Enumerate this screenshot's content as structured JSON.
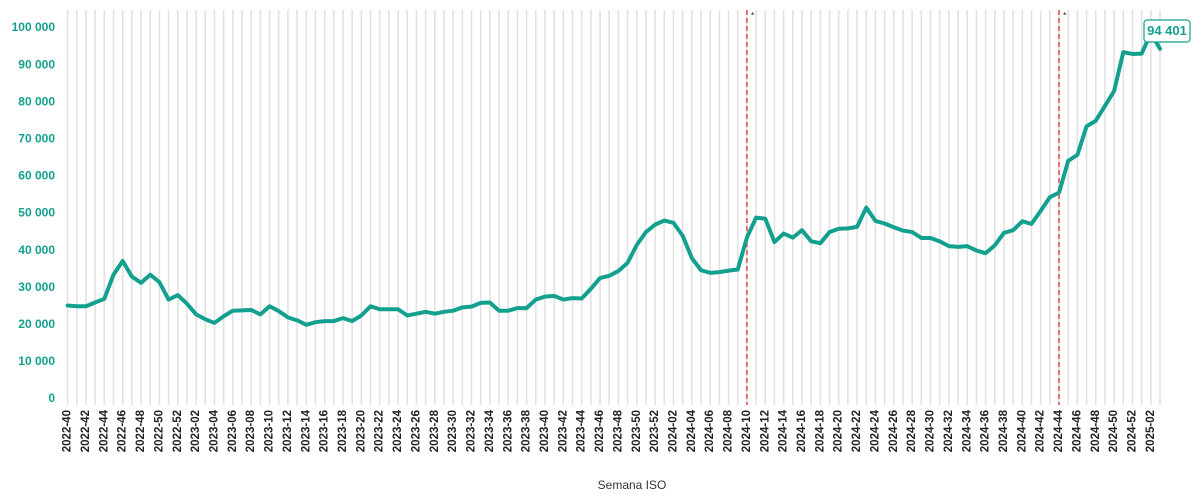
{
  "chart_data": {
    "type": "line",
    "x_label": "Semana ISO",
    "categories": [
      "2022-40",
      null,
      "2022-42",
      null,
      "2022-44",
      null,
      "2022-46",
      null,
      "2022-48",
      null,
      "2022-50",
      null,
      "2022-52",
      null,
      "2023-02",
      null,
      "2023-04",
      null,
      "2023-06",
      null,
      "2023-08",
      null,
      "2023-10",
      null,
      "2023-12",
      null,
      "2023-14",
      null,
      "2023-16",
      null,
      "2023-18",
      null,
      "2023-20",
      null,
      "2023-22",
      null,
      "2023-24",
      null,
      "2023-26",
      null,
      "2023-28",
      null,
      "2023-30",
      null,
      "2023-32",
      null,
      "2023-34",
      null,
      "2023-36",
      null,
      "2023-38",
      null,
      "2023-40",
      null,
      "2023-42",
      null,
      "2023-44",
      null,
      "2023-46",
      null,
      "2023-48",
      null,
      "2023-50",
      null,
      "2023-52",
      null,
      "2024-02",
      null,
      "2024-04",
      null,
      "2024-06",
      null,
      "2024-08",
      null,
      "2024-10",
      null,
      "2024-12",
      null,
      "2024-14",
      null,
      "2024-16",
      null,
      "2024-18",
      null,
      "2024-20",
      null,
      "2024-22",
      null,
      "2024-24",
      null,
      "2024-26",
      null,
      "2024-28",
      null,
      "2024-30",
      null,
      "2024-32",
      null,
      "2024-34",
      null,
      "2024-36",
      null,
      "2024-38",
      null,
      "2024-40",
      null,
      "2024-42",
      null,
      "2024-44",
      null,
      "2024-46",
      null,
      "2024-48",
      null,
      "2024-50",
      null,
      "2024-52",
      null,
      "2025-02",
      null
    ],
    "series": [
      {
        "color": "#13a08e",
        "values": [
          25200,
          25000,
          25000,
          26000,
          27000,
          33500,
          37200,
          33000,
          31300,
          33500,
          31500,
          26800,
          28000,
          25700,
          22800,
          21500,
          20500,
          22300,
          23800,
          23900,
          24000,
          22800,
          25000,
          23700,
          22000,
          21200,
          20000,
          20700,
          21000,
          21000,
          21800,
          21000,
          22500,
          25000,
          24200,
          24200,
          24200,
          22500,
          23000,
          23500,
          23000,
          23500,
          23800,
          24700,
          24900,
          25900,
          26000,
          23800,
          23800,
          24500,
          24500,
          26800,
          27600,
          27800,
          26800,
          27200,
          27100,
          29700,
          32600,
          33200,
          34500,
          36700,
          41500,
          45000,
          47000,
          48100,
          47500,
          44000,
          38000,
          34700,
          34000,
          34200,
          34600,
          34900,
          43500,
          48900,
          48600,
          42300,
          44600,
          43500,
          45500,
          42500,
          42000,
          45000,
          45900,
          46000,
          46400,
          51600,
          48000,
          47300,
          46300,
          45400,
          45000,
          43400,
          43400,
          42500,
          41200,
          41000,
          41200,
          40000,
          39300,
          41400,
          44800,
          45500,
          47900,
          47200,
          50700,
          54400,
          55600,
          64200,
          65800,
          73500,
          75000,
          79000,
          83000,
          93500,
          93000,
          93100,
          98600,
          94401
        ],
        "value_labels": [
          null,
          null,
          null,
          null,
          null,
          null,
          null,
          null,
          null,
          null,
          null,
          null,
          null,
          null,
          null,
          null,
          null,
          null,
          null,
          null,
          null,
          null,
          null,
          null,
          null,
          null,
          null,
          null,
          null,
          null,
          null,
          null,
          null,
          null,
          null,
          null,
          null,
          null,
          null,
          null,
          null,
          null,
          null,
          null,
          null,
          null,
          null,
          null,
          null,
          null,
          null,
          null,
          null,
          null,
          null,
          null,
          null,
          null,
          null,
          null,
          null,
          null,
          null,
          null,
          null,
          null,
          null,
          null,
          null,
          null,
          null,
          null,
          null,
          null,
          null,
          null,
          null,
          null,
          null,
          null,
          null,
          null,
          null,
          null,
          null,
          null,
          null,
          null,
          null,
          null,
          null,
          null,
          null,
          null,
          null,
          null,
          null,
          null,
          null,
          null,
          null,
          null,
          null,
          null,
          null,
          null,
          null,
          null,
          null,
          null,
          null,
          null,
          null,
          null,
          null,
          null,
          null,
          null,
          null,
          "94 401"
        ]
      }
    ],
    "ylim": [
      0,
      100000
    ],
    "yticks": [
      0,
      {
        "value": 10000,
        "label": "10 000"
      },
      {
        "value": 20000,
        "label": "20 000"
      },
      {
        "value": 30000,
        "label": "30 000"
      },
      {
        "value": 40000,
        "label": "40 000"
      },
      {
        "value": 50000,
        "label": "50 000"
      },
      {
        "value": 60000,
        "label": "60 000"
      },
      {
        "value": 70000,
        "label": "70 000"
      },
      {
        "value": 80000,
        "label": "80 000"
      },
      {
        "value": 90000,
        "label": "90 000"
      },
      {
        "value": 100000,
        "label": "100 000"
      }
    ],
    "grid": "x",
    "markers": [
      {
        "x": "2024-10",
        "label": "*",
        "color": "#e83030"
      },
      {
        "x": "2024-44",
        "label": "*",
        "color": "#e83030"
      }
    ]
  }
}
